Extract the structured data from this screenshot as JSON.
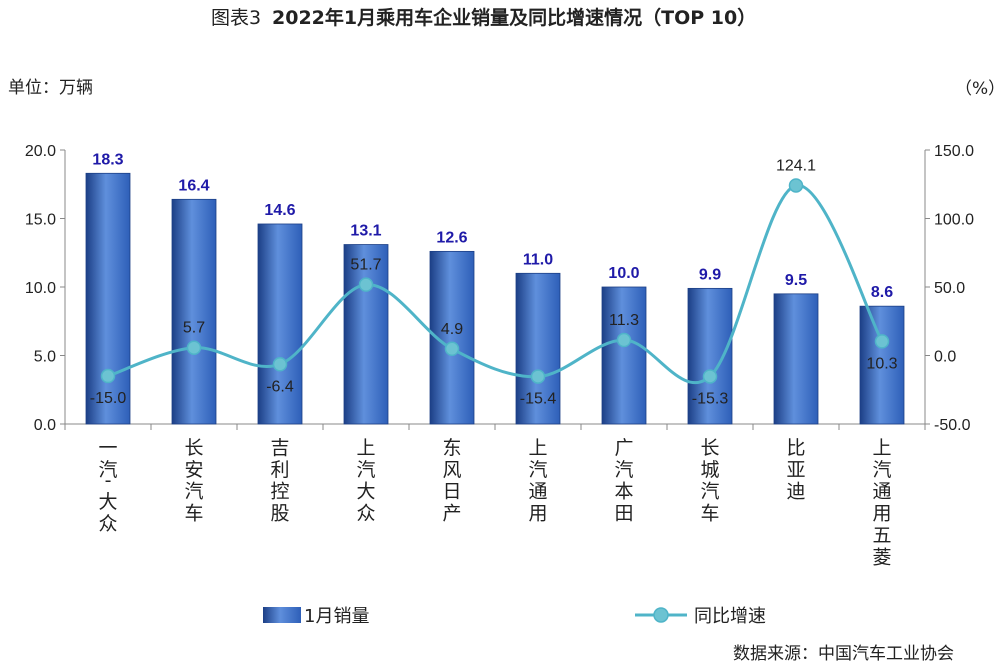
{
  "figure_label": "图表3",
  "title": "2022年1月乘用车企业销量及同比增速情况（TOP 10）",
  "left_unit": "单位：万辆",
  "right_unit": "（%）",
  "source": "数据来源：中国汽车工业协会",
  "colors": {
    "bar": "#2e5fb8",
    "bar_dark": "#1c3f86",
    "bar_light": "#5f8fdc",
    "bar_label": "#1f1aa8",
    "line": "#4fb4c8",
    "marker": "#6cc3d2"
  },
  "chart_data": {
    "type": "bar+line",
    "categories": [
      "一汽-大众",
      "长安汽车",
      "吉利控股",
      "上汽大众",
      "东风日产",
      "上汽通用",
      "广汽本田",
      "长城汽车",
      "比亚迪",
      "上汽通用五菱"
    ],
    "series": [
      {
        "name": "1月销量",
        "type": "bar",
        "axis": "left",
        "values": [
          18.3,
          16.4,
          14.6,
          13.1,
          12.6,
          11.0,
          10.0,
          9.9,
          9.5,
          8.6
        ],
        "labels": [
          "18.3",
          "16.4",
          "14.6",
          "13.1",
          "12.6",
          "11.0",
          "10.0",
          "9.9",
          "9.5",
          "8.6"
        ]
      },
      {
        "name": "同比增速",
        "type": "line",
        "axis": "right",
        "values": [
          -15.0,
          5.7,
          -6.4,
          51.7,
          4.9,
          -15.4,
          11.3,
          -15.3,
          124.1,
          10.3
        ],
        "labels": [
          "-15.0",
          "5.7",
          "-6.4",
          "51.7",
          "4.9",
          "-15.4",
          "11.3",
          "-15.3",
          "124.1",
          "10.3"
        ]
      }
    ],
    "y_left": {
      "min": 0,
      "max": 20,
      "ticks": [
        "0.0",
        "5.0",
        "10.0",
        "15.0",
        "20.0"
      ]
    },
    "y_right": {
      "min": -50,
      "max": 150,
      "ticks": [
        "-50.0",
        "0.0",
        "50.0",
        "100.0",
        "150.0"
      ]
    },
    "legend_position": "bottom",
    "grid": false
  }
}
